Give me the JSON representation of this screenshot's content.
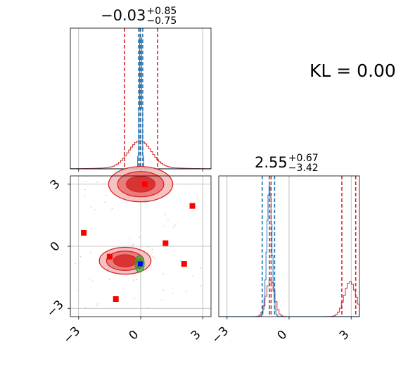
{
  "panel_titles": [
    {
      "value": "−0.03",
      "plus": "+0.85",
      "minus": "−0.75"
    },
    {
      "value": "2.55",
      "plus": "+0.67",
      "minus": "−3.42"
    }
  ],
  "kl_label": "KL = 0.00",
  "colors": {
    "red": "#d62728",
    "red_fill_light": "#f4b8b9",
    "red_fill_mid": "#e96e70",
    "red_fill_dark": "#d62728",
    "blue": "#1f77b4",
    "green": "#2ca02c",
    "marker_blue": "#0000ff",
    "marker_red": "#ff0000",
    "grid": "#b0b0b0"
  },
  "chart_data": [
    {
      "type": "histogram",
      "panel": "marginal-x",
      "xlim": [
        -3.4,
        3.4
      ],
      "series": [
        {
          "color": "red",
          "center": -0.03,
          "quantiles": [
            -0.78,
            -0.03,
            0.82
          ],
          "shape": "broad low peak"
        },
        {
          "color": "blue",
          "center": 0.0,
          "quantiles": [
            -0.1,
            0.0,
            0.1
          ],
          "shape": "narrow tall peak"
        }
      ],
      "grid": true
    },
    {
      "type": "histogram",
      "panel": "marginal-y",
      "xlim": [
        -3.4,
        3.4
      ],
      "xticks": [
        "−3",
        "0",
        "3"
      ],
      "series": [
        {
          "color": "red",
          "modes": [
            -0.9,
            2.95
          ],
          "quantiles": [
            -0.87,
            2.55,
            3.22
          ]
        },
        {
          "color": "blue",
          "center": -0.95,
          "quantiles": [
            -1.3,
            -0.95,
            -0.7
          ]
        }
      ],
      "grid": true
    },
    {
      "type": "scatter",
      "panel": "joint",
      "xlim": [
        -3.4,
        3.4
      ],
      "ylim": [
        -3.4,
        3.4
      ],
      "xticks": [
        "−3",
        "0",
        "3"
      ],
      "yticks": [
        "−3",
        "0",
        "3"
      ],
      "grid": true,
      "red_contour_modes": [
        {
          "x": 0.0,
          "y": 3.0,
          "rx": 1.55,
          "ry": 0.85
        },
        {
          "x": -0.75,
          "y": -0.7,
          "rx": 1.25,
          "ry": 0.65
        }
      ],
      "green_contour": {
        "x": -0.05,
        "y": -0.85,
        "rx": 0.22,
        "ry": 0.4
      },
      "red_markers": [
        {
          "x": 0.2,
          "y": 3.0
        },
        {
          "x": 2.5,
          "y": 1.95
        },
        {
          "x": -2.75,
          "y": 0.65
        },
        {
          "x": 1.2,
          "y": 0.15
        },
        {
          "x": -1.5,
          "y": -0.5
        },
        {
          "x": 2.1,
          "y": -0.85
        },
        {
          "x": -1.2,
          "y": -2.55
        }
      ],
      "blue_marker": {
        "x": -0.02,
        "y": -0.85
      }
    }
  ]
}
